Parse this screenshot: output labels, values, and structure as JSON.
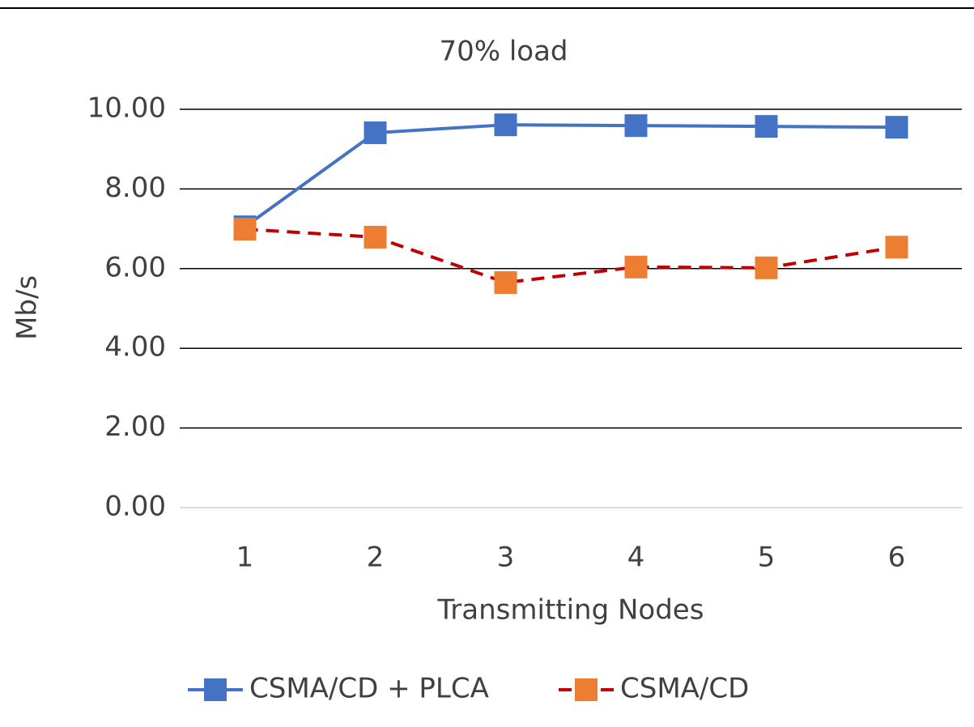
{
  "chart_data": {
    "type": "line",
    "title": "70% load",
    "xlabel": "Transmitting Nodes",
    "ylabel": "Mb/s",
    "categories": [
      "1",
      "2",
      "3",
      "4",
      "5",
      "6"
    ],
    "series": [
      {
        "name": "CSMA/CD + PLCA",
        "color": "#4472c4",
        "marker_color": "#4472c4",
        "line_style": "solid",
        "values": [
          7.05,
          9.41,
          9.61,
          9.59,
          9.57,
          9.55
        ]
      },
      {
        "name": "CSMA/CD",
        "color": "#c00000",
        "marker_color": "#ed7d31",
        "line_style": "dashed",
        "values": [
          6.99,
          6.79,
          5.65,
          6.04,
          6.02,
          6.54
        ]
      }
    ],
    "ylim": [
      0,
      10
    ],
    "yticks": [
      {
        "value": 0,
        "label": "0.00"
      },
      {
        "value": 2,
        "label": "2.00"
      },
      {
        "value": 4,
        "label": "4.00"
      },
      {
        "value": 6,
        "label": "6.00"
      },
      {
        "value": 8,
        "label": "8.00"
      },
      {
        "value": 10,
        "label": "10.00"
      }
    ],
    "grid": true,
    "legend": "bottom"
  }
}
